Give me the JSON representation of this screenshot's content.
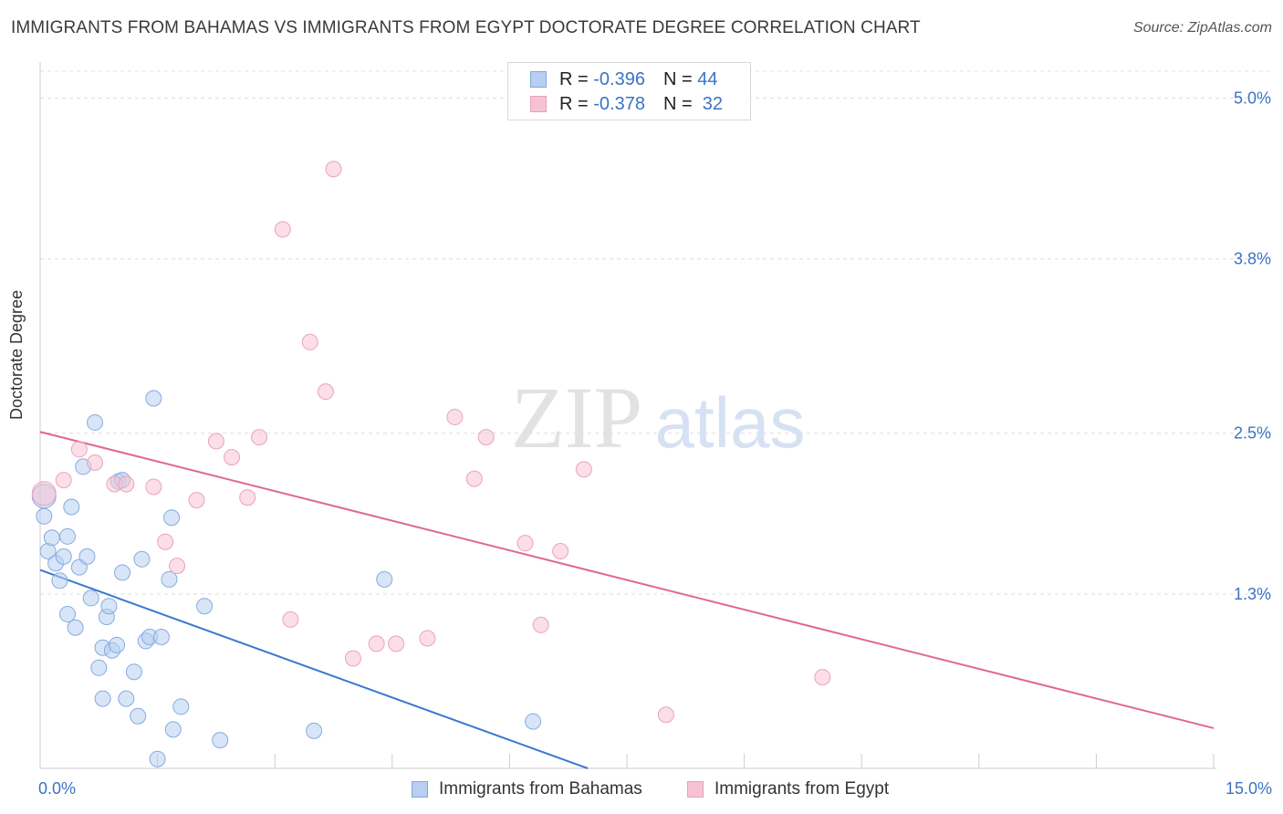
{
  "title": "IMMIGRANTS FROM BAHAMAS VS IMMIGRANTS FROM EGYPT DOCTORATE DEGREE CORRELATION CHART",
  "source": "Source: ZipAtlas.com",
  "watermark": {
    "zip": "ZIP",
    "atlas": "atlas"
  },
  "legend": {
    "r_label": "R =",
    "n_label": "N =",
    "series": [
      {
        "r": "-0.396",
        "n": "44"
      },
      {
        "r": "-0.378",
        "n": "32"
      }
    ]
  },
  "chart_data": {
    "type": "scatter",
    "title": "IMMIGRANTS FROM BAHAMAS VS IMMIGRANTS FROM EGYPT DOCTORATE DEGREE CORRELATION CHART",
    "xlabel": "",
    "ylabel": "Doctorate Degree",
    "xlim": [
      0,
      15
    ],
    "ylim": [
      0,
      5.2
    ],
    "x_tick_labels": [
      "0.0%",
      "15.0%"
    ],
    "y_ticks": [
      1.3,
      2.5,
      3.8,
      5.0
    ],
    "y_tick_labels": [
      "1.3%",
      "2.5%",
      "3.8%",
      "5.0%"
    ],
    "grid": true,
    "legend_position": "bottom-center",
    "colors": {
      "blue": "#4a7fd4",
      "blue_fill": "#b7cff0",
      "pink": "#e06890",
      "pink_fill": "#f7c3d3"
    },
    "series": [
      {
        "name": "Immigrants from Bahamas",
        "color": "#4a7fd4",
        "points": [
          [
            0.05,
            2.03
          ],
          [
            0.05,
            1.88
          ],
          [
            0.1,
            1.62
          ],
          [
            0.15,
            1.72
          ],
          [
            0.2,
            1.53
          ],
          [
            0.25,
            1.4
          ],
          [
            0.3,
            1.58
          ],
          [
            0.35,
            1.73
          ],
          [
            0.35,
            1.15
          ],
          [
            0.4,
            1.95
          ],
          [
            0.45,
            1.05
          ],
          [
            0.5,
            1.5
          ],
          [
            0.55,
            2.25
          ],
          [
            0.6,
            1.58
          ],
          [
            0.65,
            1.27
          ],
          [
            0.7,
            2.58
          ],
          [
            0.75,
            0.75
          ],
          [
            0.8,
            0.9
          ],
          [
            0.8,
            0.52
          ],
          [
            0.85,
            1.13
          ],
          [
            0.88,
            1.21
          ],
          [
            0.92,
            0.88
          ],
          [
            0.98,
            0.92
          ],
          [
            1.0,
            2.14
          ],
          [
            1.05,
            1.46
          ],
          [
            1.05,
            2.15
          ],
          [
            1.1,
            0.52
          ],
          [
            1.2,
            0.72
          ],
          [
            1.25,
            0.39
          ],
          [
            1.3,
            1.56
          ],
          [
            1.35,
            0.95
          ],
          [
            1.4,
            0.98
          ],
          [
            1.45,
            2.76
          ],
          [
            1.5,
            0.07
          ],
          [
            1.55,
            0.98
          ],
          [
            1.65,
            1.41
          ],
          [
            1.68,
            1.87
          ],
          [
            1.7,
            0.29
          ],
          [
            1.8,
            0.46
          ],
          [
            2.1,
            1.21
          ],
          [
            2.3,
            0.21
          ],
          [
            3.5,
            0.28
          ],
          [
            4.4,
            1.41
          ],
          [
            6.3,
            0.35
          ]
        ]
      },
      {
        "name": "Immigrants from Egypt",
        "color": "#e06890",
        "points": [
          [
            0.05,
            2.05
          ],
          [
            0.3,
            2.15
          ],
          [
            0.5,
            2.38
          ],
          [
            0.7,
            2.28
          ],
          [
            0.95,
            2.12
          ],
          [
            1.1,
            2.12
          ],
          [
            1.45,
            2.1
          ],
          [
            1.6,
            1.69
          ],
          [
            1.75,
            1.51
          ],
          [
            2.0,
            2.0
          ],
          [
            2.25,
            2.44
          ],
          [
            2.45,
            2.32
          ],
          [
            2.65,
            2.02
          ],
          [
            2.8,
            2.47
          ],
          [
            3.1,
            4.02
          ],
          [
            3.2,
            1.11
          ],
          [
            3.45,
            3.18
          ],
          [
            3.65,
            2.81
          ],
          [
            3.75,
            4.47
          ],
          [
            4.0,
            0.82
          ],
          [
            4.3,
            0.93
          ],
          [
            4.55,
            0.93
          ],
          [
            4.95,
            0.97
          ],
          [
            5.3,
            2.62
          ],
          [
            5.55,
            2.16
          ],
          [
            5.7,
            2.47
          ],
          [
            6.2,
            1.68
          ],
          [
            6.4,
            1.07
          ],
          [
            6.65,
            1.62
          ],
          [
            6.95,
            2.23
          ],
          [
            8.0,
            0.4
          ],
          [
            10.0,
            0.68
          ]
        ]
      }
    ],
    "trend_lines": [
      {
        "series": "Immigrants from Bahamas",
        "x": [
          0.0,
          7.0
        ],
        "y": [
          1.48,
          0.0
        ]
      },
      {
        "series": "Immigrants from Egypt",
        "x": [
          0.0,
          15.0
        ],
        "y": [
          2.51,
          0.3
        ]
      }
    ]
  }
}
